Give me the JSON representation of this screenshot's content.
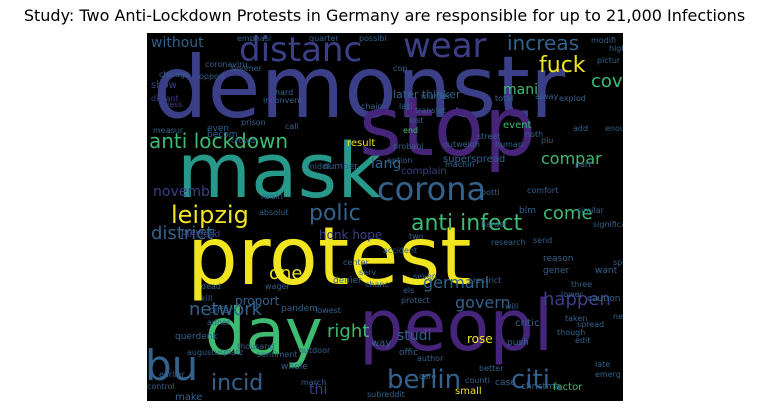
{
  "title": "Study: Two Anti-Lockdown Protests in Germany are responsible for up to 21,000 Infections",
  "colors": {
    "background": "#000000",
    "yellow": "#f0e51f",
    "green": "#3dbb72",
    "teal": "#26998a",
    "blue": "#33628d",
    "indigo": "#3b3f88",
    "purple": "#45247a"
  },
  "words": [
    {
      "text": "demonstr"
    },
    {
      "text": "protest"
    },
    {
      "text": "stop"
    },
    {
      "text": "mask"
    },
    {
      "text": "peopl"
    },
    {
      "text": "day"
    },
    {
      "text": "distanc"
    },
    {
      "text": "wear"
    },
    {
      "text": "corona"
    },
    {
      "text": "anti lockdown"
    },
    {
      "text": "leipzig"
    },
    {
      "text": "bu"
    },
    {
      "text": "berlin"
    },
    {
      "text": "citi"
    },
    {
      "text": "polic"
    },
    {
      "text": "anti infect"
    },
    {
      "text": "increas"
    },
    {
      "text": "fuck"
    },
    {
      "text": "covid"
    },
    {
      "text": "network"
    },
    {
      "text": "incid"
    },
    {
      "text": "right"
    },
    {
      "text": "happen"
    },
    {
      "text": "district"
    },
    {
      "text": "novemb"
    },
    {
      "text": "come"
    },
    {
      "text": "one"
    },
    {
      "text": "govern"
    },
    {
      "text": "germani"
    },
    {
      "text": "compar"
    },
    {
      "text": "lang"
    },
    {
      "text": "mani"
    },
    {
      "text": "without"
    },
    {
      "text": "thi"
    },
    {
      "text": "proport"
    },
    {
      "text": "studi"
    },
    {
      "text": "honk hope"
    },
    {
      "text": "later thinker"
    },
    {
      "text": "superspread"
    },
    {
      "text": "complain"
    },
    {
      "text": "event"
    },
    {
      "text": "result"
    },
    {
      "text": "number"
    },
    {
      "text": "prevent"
    },
    {
      "text": "instead"
    },
    {
      "text": "even"
    },
    {
      "text": "becom"
    },
    {
      "text": "show"
    },
    {
      "text": "chicago"
    },
    {
      "text": "coronaviru"
    },
    {
      "text": "boomer"
    },
    {
      "text": "distant"
    },
    {
      "text": "prison"
    },
    {
      "text": "lazi"
    },
    {
      "text": "murder"
    },
    {
      "text": "chanc"
    },
    {
      "text": "protect"
    },
    {
      "text": "denier"
    },
    {
      "text": "wager"
    },
    {
      "text": "center"
    },
    {
      "text": "pandem"
    },
    {
      "text": "differ"
    },
    {
      "text": "adher"
    },
    {
      "text": "querdenk"
    },
    {
      "text": "thousand"
    },
    {
      "text": "two"
    },
    {
      "text": "seven"
    },
    {
      "text": "serv"
    },
    {
      "text": "restrict"
    },
    {
      "text": "rose"
    },
    {
      "text": "critic"
    },
    {
      "text": "push"
    },
    {
      "text": "way"
    },
    {
      "text": "offic"
    },
    {
      "text": "author"
    },
    {
      "text": "small"
    },
    {
      "text": "case"
    },
    {
      "text": "christma"
    },
    {
      "text": "factor"
    },
    {
      "text": "reason"
    },
    {
      "text": "gener"
    },
    {
      "text": "want"
    },
    {
      "text": "three"
    },
    {
      "text": "caution"
    },
    {
      "text": "lower"
    },
    {
      "text": "will"
    },
    {
      "text": "taken"
    },
    {
      "text": "spread"
    },
    {
      "text": "though"
    },
    {
      "text": "edit"
    },
    {
      "text": "late"
    },
    {
      "text": "emerg"
    },
    {
      "text": "better"
    },
    {
      "text": "care"
    },
    {
      "text": "counti"
    },
    {
      "text": "subreddit"
    },
    {
      "text": "whole"
    },
    {
      "text": "make"
    },
    {
      "text": "control"
    },
    {
      "text": "earlier"
    },
    {
      "text": "march"
    },
    {
      "text": "sentiment"
    },
    {
      "text": "outdoor"
    },
    {
      "text": "lowest"
    },
    {
      "text": "dead"
    },
    {
      "text": "kill"
    },
    {
      "text": "raisin"
    },
    {
      "text": "absolut"
    },
    {
      "text": "harder"
    },
    {
      "text": "research"
    },
    {
      "text": "send"
    },
    {
      "text": "bottl"
    },
    {
      "text": "comfort"
    },
    {
      "text": "blm"
    },
    {
      "text": "similar"
    },
    {
      "text": "significantli"
    },
    {
      "text": "high"
    },
    {
      "text": "pictur"
    },
    {
      "text": "explod"
    },
    {
      "text": "alway"
    },
    {
      "text": "total"
    },
    {
      "text": "human"
    },
    {
      "text": "street"
    },
    {
      "text": "noth"
    },
    {
      "text": "plu"
    },
    {
      "text": "outweigh"
    },
    {
      "text": "option"
    },
    {
      "text": "probabl"
    },
    {
      "text": "machin"
    },
    {
      "text": "part"
    },
    {
      "text": "add"
    },
    {
      "text": "enough"
    },
    {
      "text": "emphasi"
    },
    {
      "text": "quarter"
    },
    {
      "text": "possibl"
    },
    {
      "text": "cop"
    },
    {
      "text": "modifi"
    },
    {
      "text": "oppon"
    },
    {
      "text": "hard"
    },
    {
      "text": "translat"
    },
    {
      "text": "call"
    },
    {
      "text": "end"
    },
    {
      "text": "lost"
    },
    {
      "text": "less"
    },
    {
      "text": "chair"
    },
    {
      "text": "inconveni"
    },
    {
      "text": "measur"
    },
    {
      "text": "crowd"
    },
    {
      "text": "middl"
    },
    {
      "text": "accident"
    },
    {
      "text": "speci"
    },
    {
      "text": "augustusplatz"
    },
    {
      "text": "new"
    },
    {
      "text": "els"
    }
  ]
}
